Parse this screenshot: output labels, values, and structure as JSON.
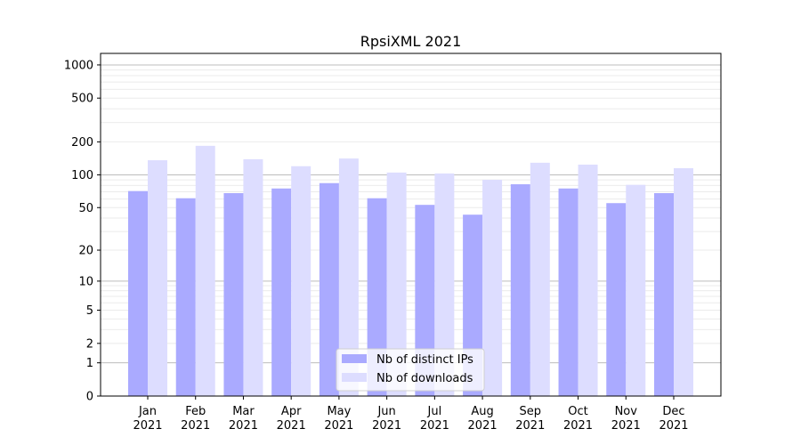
{
  "chart_data": {
    "type": "bar",
    "title": "RpsiXML 2021",
    "xlabel": "",
    "ylabel": "",
    "yscale": "symlog (log10(1+y))",
    "ylim": [
      0,
      1200
    ],
    "yticks": [
      0,
      1,
      2,
      5,
      10,
      20,
      50,
      100,
      200,
      500,
      1000
    ],
    "grid": true,
    "legend_position": "bottom-center",
    "categories": [
      "Jan\n2021",
      "Feb\n2021",
      "Mar\n2021",
      "Apr\n2021",
      "May\n2021",
      "Jun\n2021",
      "Jul\n2021",
      "Aug\n2021",
      "Sep\n2021",
      "Oct\n2021",
      "Nov\n2021",
      "Dec\n2021"
    ],
    "series": [
      {
        "name": "Nb of distinct IPs",
        "color": "#aaaaff",
        "values": [
          71,
          61,
          68,
          75,
          84,
          61,
          53,
          43,
          82,
          75,
          55,
          68
        ]
      },
      {
        "name": "Nb of downloads",
        "color": "#ddddff",
        "values": [
          136,
          184,
          139,
          120,
          141,
          105,
          103,
          90,
          129,
          124,
          81,
          115
        ]
      }
    ]
  }
}
